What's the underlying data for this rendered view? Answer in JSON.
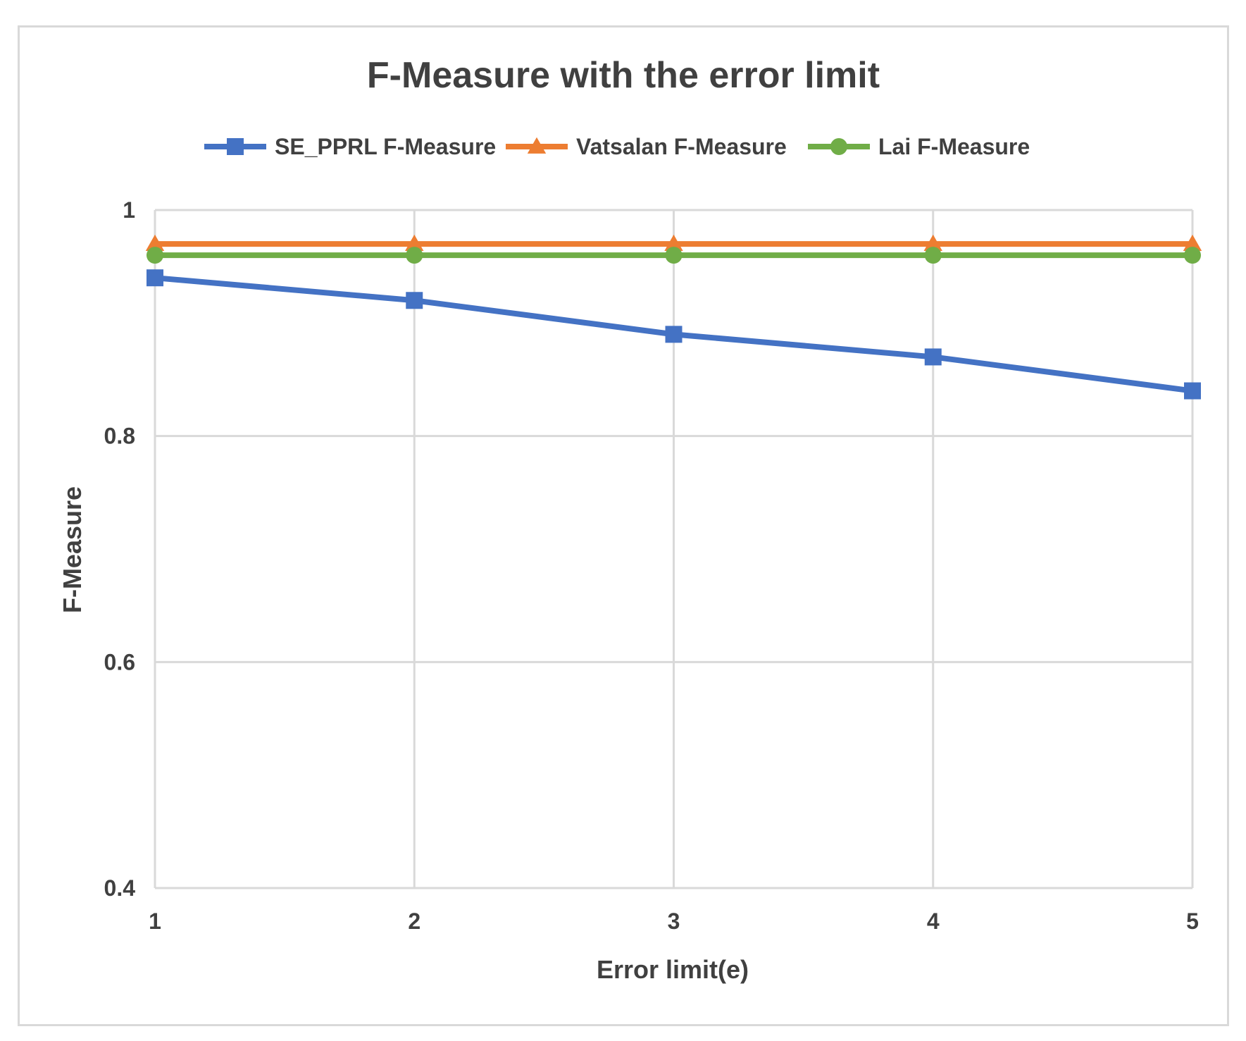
{
  "chart_data": {
    "type": "line",
    "title": "F-Measure with the error limit",
    "xlabel": "Error limit(e)",
    "ylabel": "F-Measure",
    "x": [
      1,
      2,
      3,
      4,
      5
    ],
    "x_tick_labels": [
      "1",
      "2",
      "3",
      "4",
      "5"
    ],
    "ylim": [
      0.4,
      1
    ],
    "y_ticks": [
      0.4,
      0.6,
      0.8,
      1
    ],
    "y_tick_labels": [
      "0.4",
      "0.6",
      "0.8",
      "1"
    ],
    "grid": true,
    "legend_position": "top",
    "series": [
      {
        "name": "SE_PPRL F-Measure",
        "values": [
          0.94,
          0.92,
          0.89,
          0.87,
          0.84
        ],
        "color": "#4472c4",
        "marker": "square"
      },
      {
        "name": "Vatsalan F-Measure",
        "values": [
          0.97,
          0.97,
          0.97,
          0.97,
          0.97
        ],
        "color": "#ed7d31",
        "marker": "triangle"
      },
      {
        "name": "Lai F-Measure",
        "values": [
          0.96,
          0.96,
          0.96,
          0.96,
          0.96
        ],
        "color": "#70ad47",
        "marker": "circle"
      }
    ]
  }
}
